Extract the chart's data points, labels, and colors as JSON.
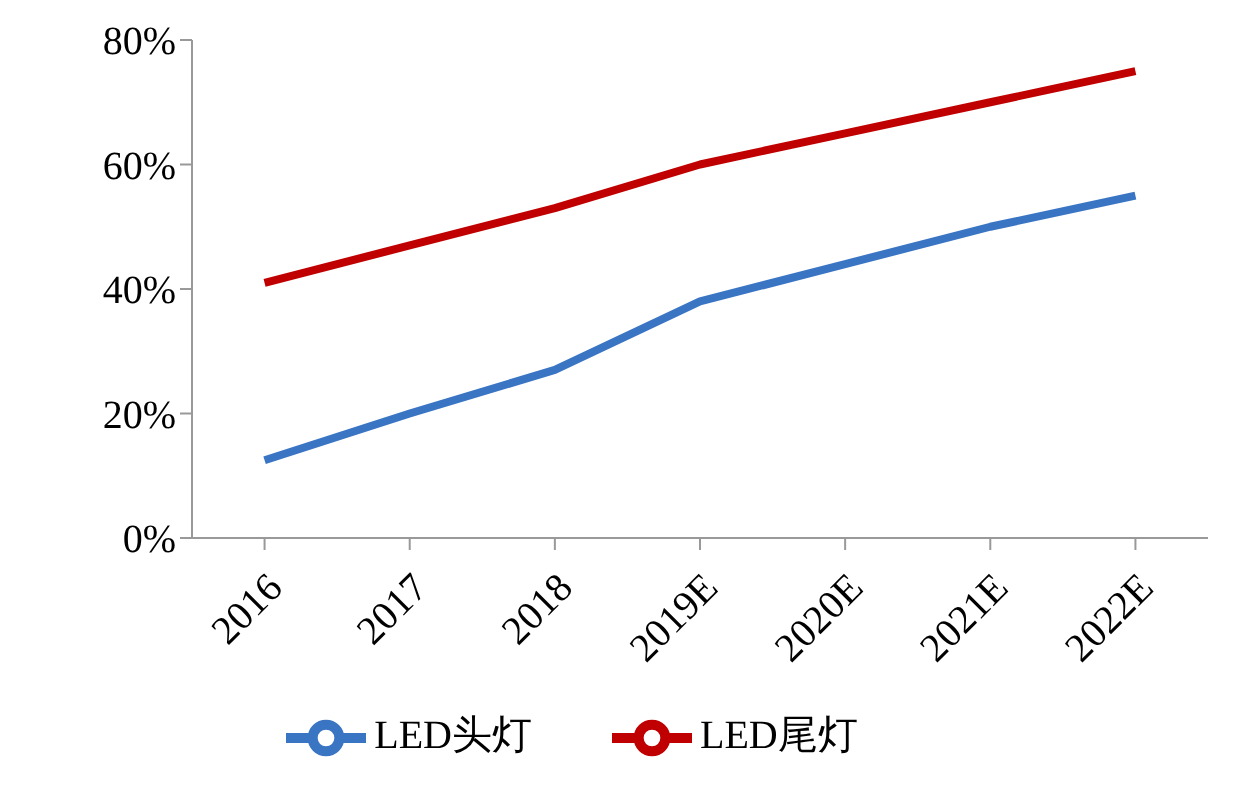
{
  "chart_data": {
    "type": "line",
    "categories": [
      "2016",
      "2017",
      "2018",
      "2019E",
      "2020E",
      "2021E",
      "2022E"
    ],
    "series": [
      {
        "name": "LED头灯",
        "color": "#3a75c4",
        "values": [
          12.5,
          20,
          27,
          38,
          44,
          50,
          55
        ]
      },
      {
        "name": "LED尾灯",
        "color": "#c00000",
        "values": [
          41,
          47,
          53,
          60,
          65,
          70,
          75
        ]
      }
    ],
    "ylim": [
      0,
      80
    ],
    "yticks": [
      {
        "value": 0,
        "label": "0%"
      },
      {
        "value": 20,
        "label": "20%"
      },
      {
        "value": 40,
        "label": "40%"
      },
      {
        "value": 60,
        "label": "60%"
      },
      {
        "value": 80,
        "label": "80%"
      }
    ],
    "grid": false,
    "legend": "bottom",
    "marker": "none",
    "line_style": "solid"
  }
}
